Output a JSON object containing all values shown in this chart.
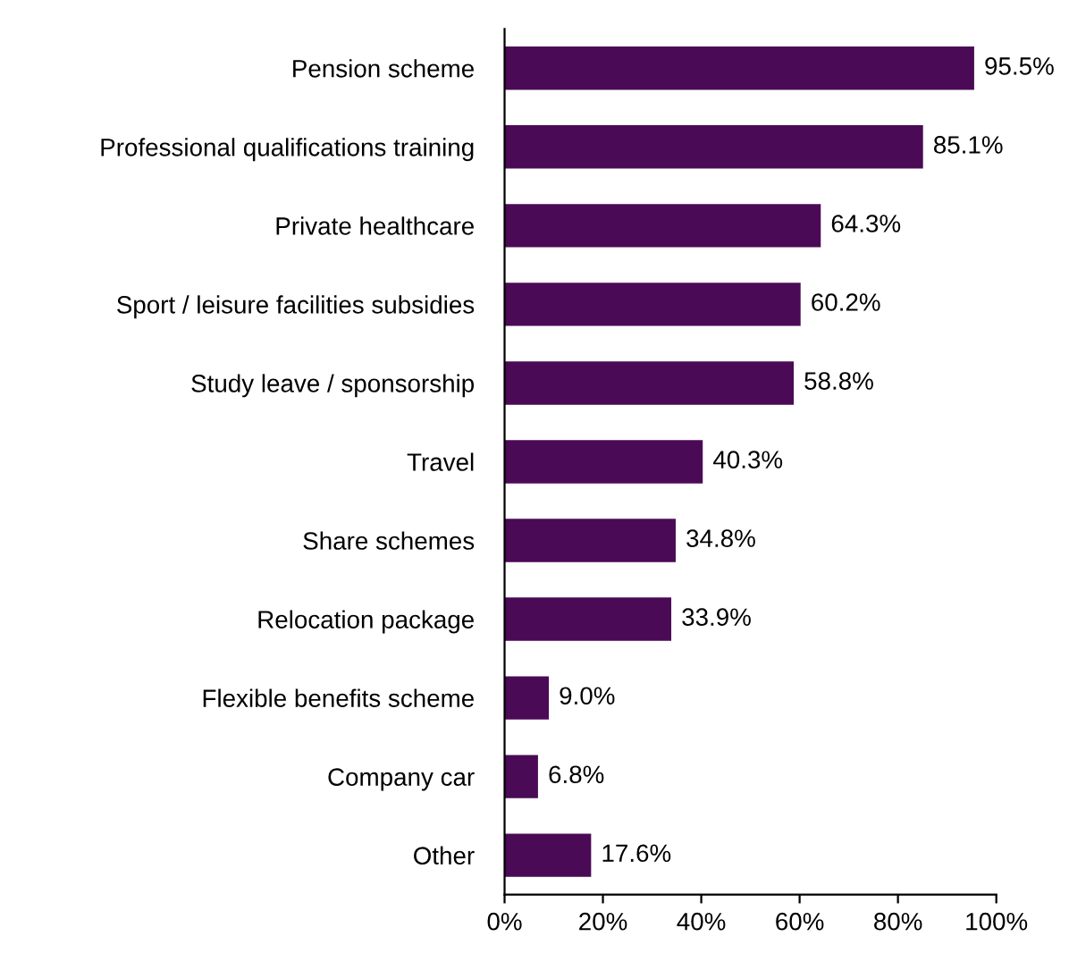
{
  "chart_data": {
    "type": "bar",
    "orientation": "horizontal",
    "categories": [
      "Pension scheme",
      "Professional qualifications training",
      "Private healthcare",
      "Sport / leisure facilities subsidies",
      "Study leave / sponsorship",
      "Travel",
      "Share schemes",
      "Relocation package",
      "Flexible benefits scheme",
      "Company car",
      "Other"
    ],
    "values": [
      95.5,
      85.1,
      64.3,
      60.2,
      58.8,
      40.3,
      34.8,
      33.9,
      9.0,
      6.8,
      17.6
    ],
    "value_labels": [
      "95.5%",
      "85.1%",
      "64.3%",
      "60.2%",
      "58.8%",
      "40.3%",
      "34.8%",
      "33.9%",
      "9.0%",
      "6.8%",
      "17.6%"
    ],
    "color": "#4b0a55",
    "xlim": [
      0,
      100
    ],
    "xticks": [
      {
        "value": 0,
        "label": "0%"
      },
      {
        "value": 20,
        "label": "20%"
      },
      {
        "value": 40,
        "label": "40%"
      },
      {
        "value": 60,
        "label": "60%"
      },
      {
        "value": 80,
        "label": "80%"
      },
      {
        "value": 100,
        "label": "100%"
      }
    ],
    "grid": false
  }
}
